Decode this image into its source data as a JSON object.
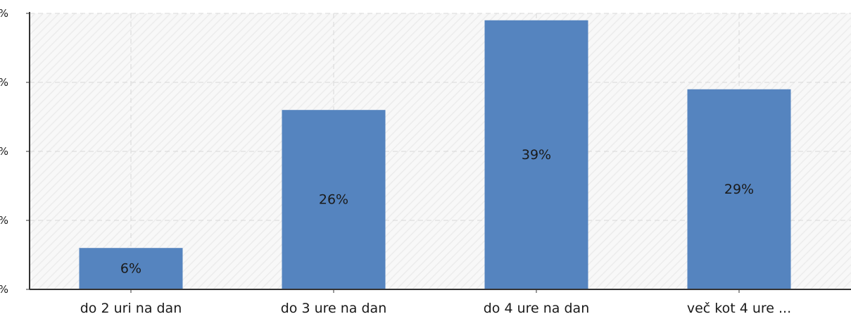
{
  "chart_data": {
    "type": "bar",
    "title": "",
    "xlabel": "",
    "ylabel": "",
    "categories": [
      "do 2 uri na dan",
      "do 3 ure na dan",
      "do 4 ure na dan",
      "več kot 4 ure ..."
    ],
    "values": [
      6,
      26,
      39,
      29
    ],
    "data_labels": [
      "6%",
      "26%",
      "39%",
      "29%"
    ],
    "ylim": [
      0,
      40
    ],
    "yticks": [
      0,
      10,
      20,
      30,
      40
    ],
    "ytick_labels": [
      "%",
      "%",
      "%",
      "%",
      "%"
    ],
    "grid": true,
    "legend": "none",
    "colors": {
      "bar": "#5584bf",
      "grid": "#d9d9d9",
      "axis": "#333333",
      "plot_bg": "#f8f8f8",
      "hatch": "#e8e8e8",
      "text": "#1a1a1a"
    }
  }
}
